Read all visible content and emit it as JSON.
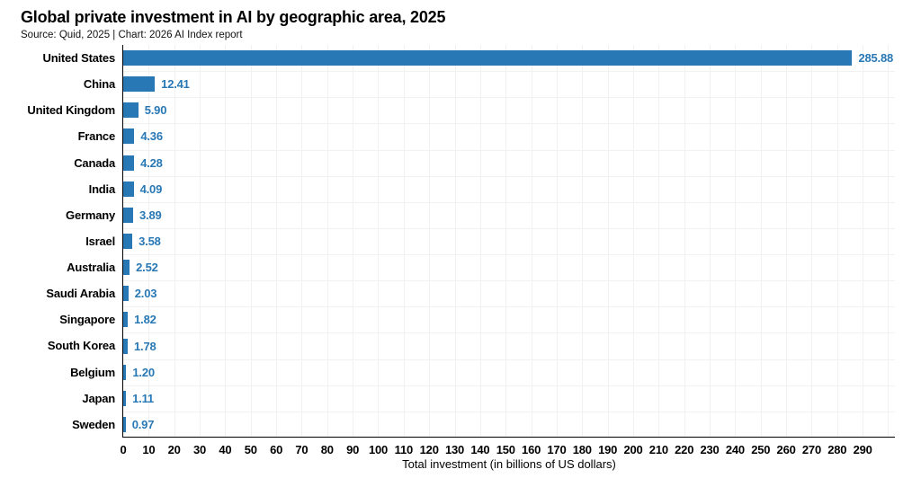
{
  "header": {
    "title": "Global private investment in AI by geographic area, 2025",
    "subtitle": "Source: Quid, 2025 | Chart: 2026 AI Index report"
  },
  "chart_data": {
    "type": "bar",
    "orientation": "horizontal",
    "title": "Global private investment in AI by geographic area, 2025",
    "subtitle": "Source: Quid, 2025 | Chart: 2026 AI Index report",
    "categories": [
      "United States",
      "China",
      "United Kingdom",
      "France",
      "Canada",
      "India",
      "Germany",
      "Israel",
      "Australia",
      "Saudi Arabia",
      "Singapore",
      "South Korea",
      "Belgium",
      "Japan",
      "Sweden"
    ],
    "values": [
      285.88,
      12.41,
      5.9,
      4.36,
      4.28,
      4.09,
      3.89,
      3.58,
      2.52,
      2.03,
      1.82,
      1.78,
      1.2,
      1.11,
      0.97
    ],
    "value_labels": [
      "285.88",
      "12.41",
      "5.90",
      "4.36",
      "4.28",
      "4.09",
      "3.89",
      "3.58",
      "2.52",
      "2.03",
      "1.82",
      "1.78",
      "1.20",
      "1.11",
      "0.97"
    ],
    "xlabel": "Total investment (in billions of US dollars)",
    "ylabel": "",
    "xlim": [
      0,
      303
    ],
    "xticks": [
      0,
      10,
      20,
      30,
      40,
      50,
      60,
      70,
      80,
      90,
      100,
      110,
      120,
      130,
      140,
      150,
      160,
      170,
      180,
      190,
      200,
      210,
      220,
      230,
      240,
      250,
      260,
      270,
      280,
      290
    ],
    "grid": true,
    "legend": null,
    "colors": {
      "bar": "#2878b5",
      "value_label": "#2878b5",
      "axis": "#000000",
      "grid": "#f1f1f1",
      "text": "#000000",
      "background": "#ffffff"
    }
  }
}
